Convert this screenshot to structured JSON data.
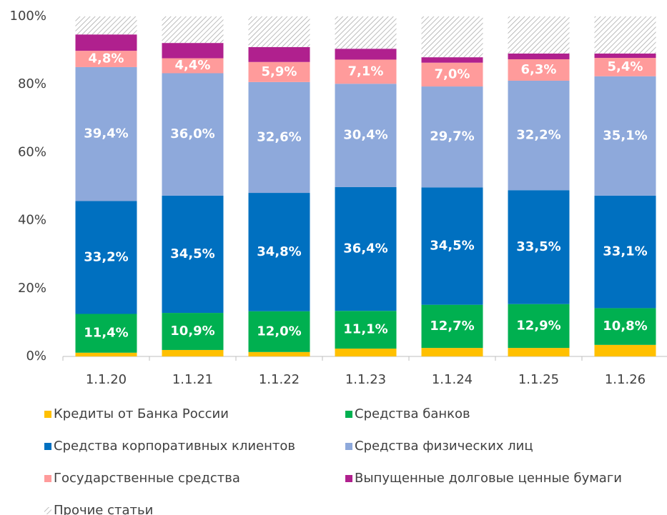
{
  "chart_data": {
    "type": "stacked_bar",
    "categories": [
      "1.1.20",
      "1.1.21",
      "1.1.22",
      "1.1.23",
      "1.1.24",
      "1.1.25",
      "1.1.26"
    ],
    "series": [
      {
        "name": "Кредиты от Банка России",
        "color": "#FFC000",
        "values": [
          1.1,
          1.9,
          1.3,
          2.3,
          2.5,
          2.5,
          3.4
        ]
      },
      {
        "name": "Средства банков",
        "color": "#00B050",
        "values": [
          11.4,
          10.9,
          12.0,
          11.1,
          12.7,
          12.9,
          10.8
        ],
        "value_labels": [
          "11,4%",
          "10,9%",
          "12,0%",
          "11,1%",
          "12,7%",
          "12,9%",
          "10,8%"
        ]
      },
      {
        "name": "Средства корпоративных клиентов",
        "color": "#0070C0",
        "values": [
          33.2,
          34.5,
          34.8,
          36.4,
          34.5,
          33.5,
          33.1
        ],
        "value_labels": [
          "33,2%",
          "34,5%",
          "34,8%",
          "36,4%",
          "34,5%",
          "33,5%",
          "33,1%"
        ]
      },
      {
        "name": "Средства физических лиц",
        "color": "#8EA9DB",
        "values": [
          39.4,
          36.0,
          32.6,
          30.4,
          29.7,
          32.2,
          35.1
        ],
        "value_labels": [
          "39,4%",
          "36,0%",
          "32,6%",
          "30,4%",
          "29,7%",
          "32,2%",
          "35,1%"
        ]
      },
      {
        "name": "Государственные средства",
        "color": "#FF9B9B",
        "values": [
          4.8,
          4.4,
          5.9,
          7.1,
          7.0,
          6.3,
          5.4
        ],
        "value_labels": [
          "4,8%",
          "4,4%",
          "5,9%",
          "7,1%",
          "7,0%",
          "6,3%",
          "5,4%"
        ]
      },
      {
        "name": "Выпущенные долговые ценные бумаги",
        "color": "#B0208E",
        "values": [
          4.8,
          4.5,
          4.4,
          3.2,
          1.6,
          1.7,
          1.3
        ]
      },
      {
        "name": "Прочие статьи",
        "color": "#A6A6A6",
        "hatch": true,
        "values": [
          5.3,
          7.8,
          9.0,
          9.5,
          12.0,
          10.9,
          10.9
        ]
      }
    ],
    "ylim": [
      0,
      100
    ],
    "yticks": [
      {
        "value": 0,
        "label": "0%"
      },
      {
        "value": 20,
        "label": "20%"
      },
      {
        "value": 40,
        "label": "40%"
      },
      {
        "value": 60,
        "label": "60%"
      },
      {
        "value": 80,
        "label": "80%"
      },
      {
        "value": 100,
        "label": "100%"
      }
    ],
    "legend": "bottom"
  }
}
